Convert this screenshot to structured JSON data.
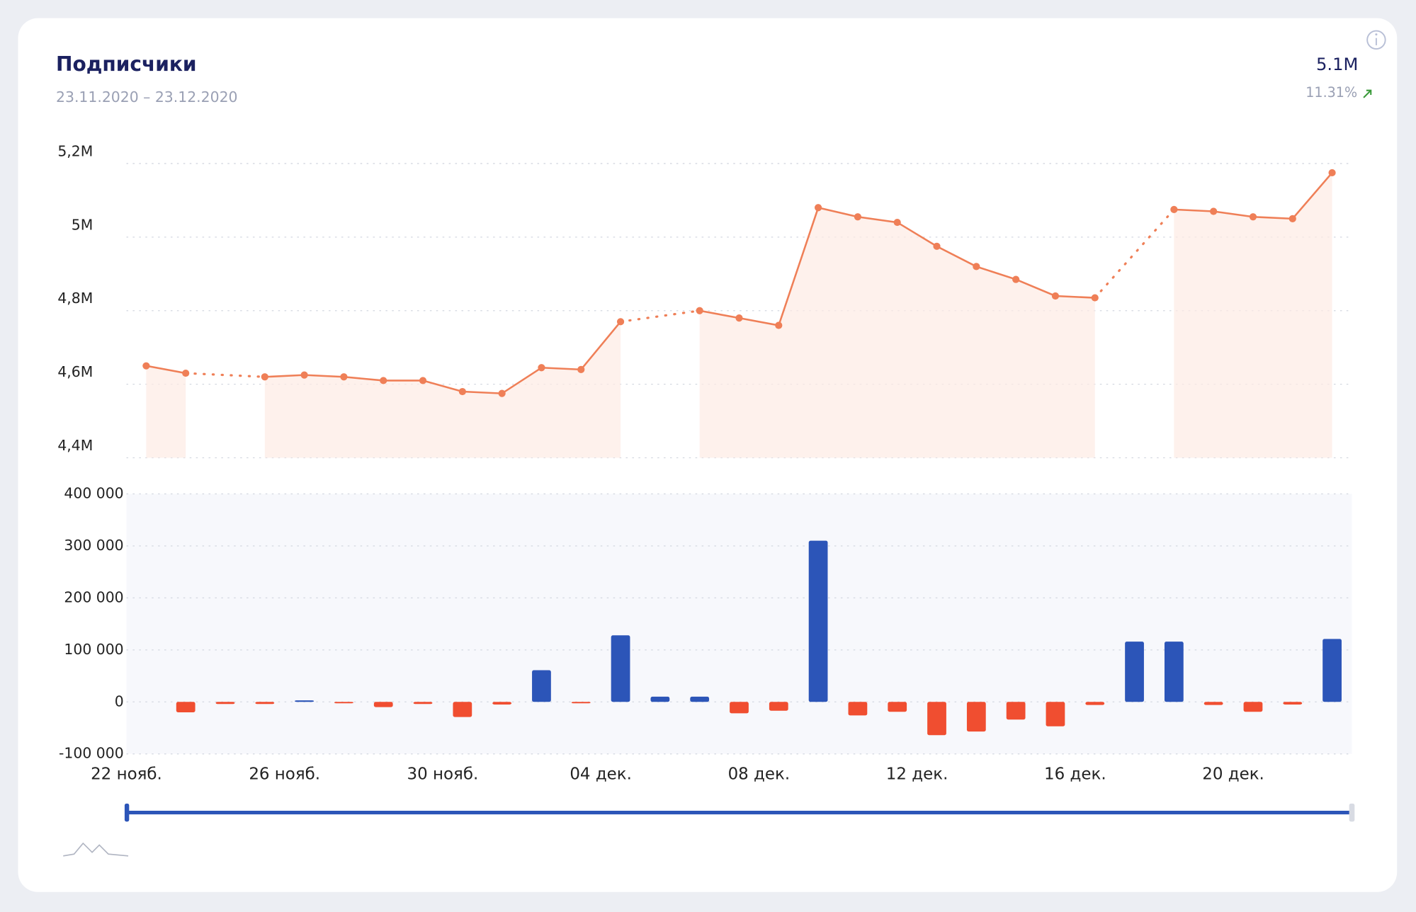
{
  "header": {
    "title": "Подписчики",
    "subtitle": "23.11.2020 – 23.12.2020",
    "total": "5.1M",
    "change": "11.31%"
  },
  "chart_data": [
    {
      "type": "line",
      "color": "#ef7f57",
      "area_color": "#fdebe4",
      "grid": true,
      "values": [
        4650000,
        4630000,
        null,
        4620000,
        4625000,
        4620000,
        4610000,
        4610000,
        4580000,
        4575000,
        4645000,
        4640000,
        4770000,
        null,
        4800000,
        4780000,
        4760000,
        5080000,
        5055000,
        5040000,
        4975000,
        4920000,
        4885000,
        4840000,
        4835000,
        null,
        5075000,
        5070000,
        5055000,
        5050000,
        5175000
      ],
      "ylim": [
        4400000,
        5200000
      ],
      "yticks": [
        {
          "value": 4400000,
          "label": "4,4M"
        },
        {
          "value": 4600000,
          "label": "4,6M"
        },
        {
          "value": 4800000,
          "label": "4,8M"
        },
        {
          "value": 5000000,
          "label": "5M"
        },
        {
          "value": 5200000,
          "label": "5,2M"
        }
      ]
    },
    {
      "type": "bar",
      "positive_color": "#2c55b8",
      "negative_color": "#f04e30",
      "grid": true,
      "categories": [
        "22 нояб.",
        null,
        null,
        null,
        "26 нояб.",
        null,
        null,
        null,
        "30 нояб.",
        null,
        null,
        null,
        "04 дек.",
        null,
        null,
        null,
        "08 дек.",
        null,
        null,
        null,
        "12 дек.",
        null,
        null,
        null,
        "16 дек.",
        null,
        null,
        null,
        "20 дек.",
        null,
        null
      ],
      "values": [
        null,
        -20000,
        -4000,
        -4000,
        3000,
        -1000,
        -10000,
        -4000,
        -29000,
        -5000,
        61000,
        -1000,
        128000,
        10000,
        10000,
        -22000,
        -17000,
        310000,
        -26000,
        -19000,
        -64000,
        -57000,
        -34000,
        -47000,
        -6000,
        116000,
        116000,
        -6000,
        -19000,
        -5000,
        121000
      ],
      "ylim": [
        -100000,
        400000
      ],
      "yticks": [
        {
          "value": -100000,
          "label": "-100 000"
        },
        0,
        {
          "value": 100000,
          "label": "100 000"
        },
        {
          "value": 200000,
          "label": "200 000"
        },
        {
          "value": 300000,
          "label": "300 000"
        },
        {
          "value": 400000,
          "label": "400 000"
        }
      ]
    }
  ]
}
